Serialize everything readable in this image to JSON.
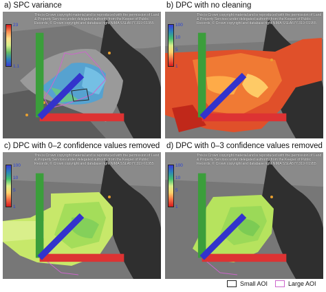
{
  "panels": [
    {
      "label": "a) SPC variance",
      "scale": [
        "23",
        "1.1"
      ],
      "type": "variance"
    },
    {
      "label": "b) DPC with no cleaning",
      "scale": [
        "100",
        "10",
        "5",
        "1"
      ],
      "type": "conf"
    },
    {
      "label": "c) DPC with 0–2 confidence values removed",
      "scale": [
        "100",
        "10",
        "5",
        "1"
      ],
      "type": "conf"
    },
    {
      "label": "d) DPC with 0–3 confidence values removed",
      "scale": [
        "100",
        "10",
        "5",
        "1"
      ],
      "type": "conf"
    }
  ],
  "copyright": "This is Crown copyright material and is reproduced with the permission of Land & Property Services under delegated authority from the Keeper of Public Records, © Crown copyright and database right NIMA SSLA577.319 ©1955",
  "legend": {
    "small_aoi": "Small AOI",
    "large_aoi": "Large AOI",
    "small_color": "#222222",
    "large_color": "#cc66cc"
  }
}
